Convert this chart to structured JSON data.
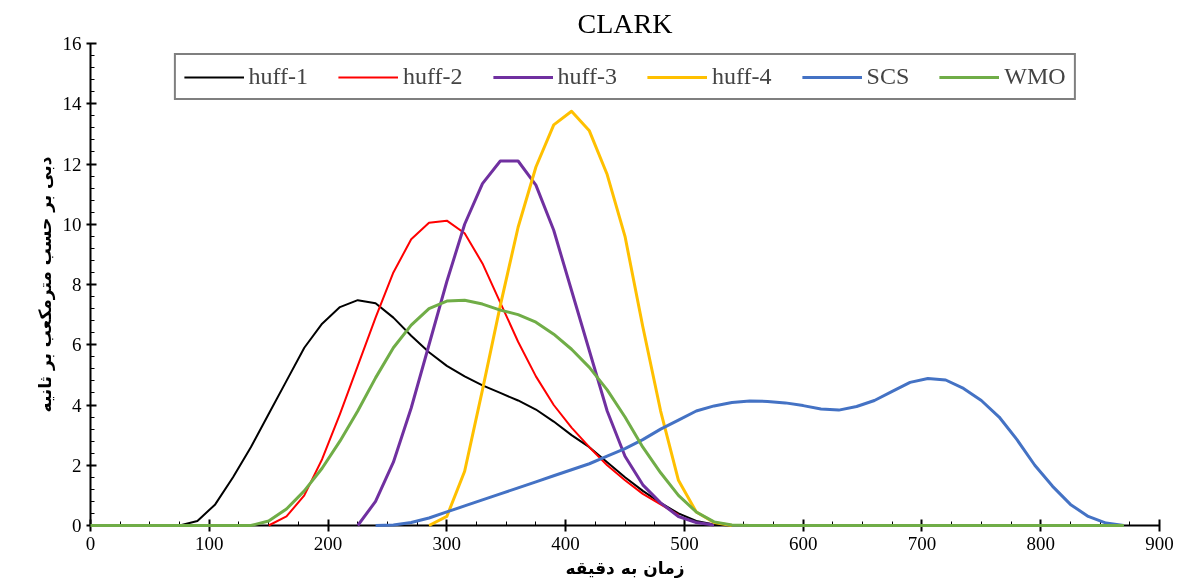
{
  "chart_data": {
    "type": "line",
    "title": "CLARK",
    "xlabel": "زمان به دقیقه",
    "ylabel": "دبی بر حسب مترمکعب بر ثانیه",
    "x": [
      0,
      15,
      30,
      45,
      60,
      75,
      90,
      105,
      120,
      135,
      150,
      165,
      180,
      195,
      210,
      225,
      240,
      255,
      270,
      285,
      300,
      315,
      330,
      345,
      360,
      375,
      390,
      405,
      420,
      435,
      450,
      465,
      480,
      495,
      510,
      525,
      540,
      555,
      570,
      585,
      600,
      615,
      630,
      645,
      660,
      675,
      690,
      705,
      720,
      735,
      750,
      765,
      780,
      795,
      810,
      825,
      840,
      855,
      870
    ],
    "series": [
      {
        "name": "huff-1",
        "color": "#000000",
        "values": [
          null,
          null,
          null,
          null,
          null,
          0,
          0.15,
          0.7,
          1.6,
          2.6,
          3.7,
          4.8,
          5.9,
          6.7,
          7.25,
          7.48,
          7.38,
          6.9,
          6.3,
          5.75,
          5.3,
          4.95,
          4.65,
          4.4,
          4.15,
          3.85,
          3.45,
          3.0,
          2.6,
          2.1,
          1.6,
          1.15,
          0.75,
          0.4,
          0.15,
          0.03,
          0,
          null,
          null,
          null,
          null,
          null,
          null,
          null,
          null,
          null,
          null,
          null,
          null,
          null,
          null,
          null,
          null,
          null,
          null,
          null,
          null,
          null,
          null
        ]
      },
      {
        "name": "huff-2",
        "color": "#ff0000",
        "values": [
          null,
          null,
          null,
          null,
          null,
          null,
          null,
          null,
          null,
          null,
          0,
          0.3,
          1.0,
          2.2,
          3.7,
          5.3,
          6.9,
          8.4,
          9.5,
          10.05,
          10.12,
          9.7,
          8.7,
          7.4,
          6.1,
          4.95,
          4.0,
          3.25,
          2.6,
          2.0,
          1.5,
          1.05,
          0.7,
          0.35,
          null,
          null,
          null,
          null,
          null,
          null,
          null,
          null,
          null,
          null,
          null,
          null,
          null,
          null,
          null,
          null,
          null,
          null,
          null,
          null,
          null,
          null,
          null,
          null,
          null
        ]
      },
      {
        "name": "huff-3",
        "color": "#7030a0",
        "values": [
          null,
          null,
          null,
          null,
          null,
          null,
          null,
          null,
          null,
          null,
          null,
          null,
          null,
          null,
          null,
          0,
          0.8,
          2.1,
          3.9,
          6.0,
          8.1,
          10.0,
          11.35,
          12.1,
          12.1,
          11.3,
          9.8,
          7.8,
          5.8,
          3.8,
          2.3,
          1.35,
          0.75,
          0.3,
          0.1,
          0.02,
          null,
          null,
          null,
          null,
          null,
          null,
          null,
          null,
          null,
          null,
          null,
          null,
          null,
          null,
          null,
          null,
          null,
          null,
          null,
          null,
          null,
          null,
          null
        ]
      },
      {
        "name": "huff-4",
        "color": "#ffc000",
        "values": [
          null,
          null,
          null,
          null,
          null,
          null,
          null,
          null,
          null,
          null,
          null,
          null,
          null,
          null,
          null,
          null,
          null,
          null,
          null,
          0,
          0.3,
          1.8,
          4.5,
          7.3,
          9.9,
          11.9,
          13.3,
          13.75,
          13.1,
          11.65,
          9.6,
          6.6,
          3.8,
          1.5,
          0.45,
          0.1,
          0,
          null,
          null,
          null,
          null,
          null,
          null,
          null,
          null,
          null,
          null,
          null,
          null,
          null,
          null,
          null,
          null,
          null,
          null,
          null,
          null,
          null,
          null
        ]
      },
      {
        "name": "SCS",
        "color": "#4472c4",
        "values": [
          null,
          null,
          null,
          null,
          null,
          null,
          null,
          null,
          null,
          null,
          null,
          null,
          null,
          null,
          null,
          null,
          0,
          0.02,
          0.1,
          0.25,
          0.45,
          0.65,
          0.85,
          1.05,
          1.25,
          1.45,
          1.65,
          1.85,
          2.05,
          2.3,
          2.55,
          2.85,
          3.2,
          3.5,
          3.8,
          3.97,
          4.08,
          4.13,
          4.12,
          4.07,
          3.98,
          3.87,
          3.83,
          3.95,
          4.15,
          4.45,
          4.75,
          4.88,
          4.83,
          4.55,
          4.15,
          3.6,
          2.85,
          2.0,
          1.3,
          0.7,
          0.3,
          0.08,
          0
        ]
      },
      {
        "name": "WMO",
        "color": "#70ad47",
        "values": [
          0,
          0,
          0,
          0,
          0,
          0,
          0,
          0,
          0,
          0,
          0.15,
          0.55,
          1.15,
          1.9,
          2.8,
          3.8,
          4.9,
          5.9,
          6.65,
          7.2,
          7.45,
          7.48,
          7.35,
          7.15,
          7.0,
          6.75,
          6.35,
          5.85,
          5.25,
          4.5,
          3.6,
          2.6,
          1.75,
          1.0,
          0.45,
          0.12,
          0.02,
          0,
          0,
          0,
          0,
          0,
          0,
          0,
          0,
          0,
          0,
          0,
          0,
          0,
          0,
          0,
          0,
          0,
          0,
          0,
          0,
          0,
          0
        ]
      }
    ],
    "xlim": [
      0,
      900
    ],
    "xticks": [
      0,
      100,
      200,
      300,
      400,
      500,
      600,
      700,
      800,
      900
    ],
    "ylim": [
      0,
      16
    ],
    "yticks": [
      0,
      2,
      4,
      6,
      8,
      10,
      12,
      14,
      16
    ],
    "grid": false,
    "legend": "top",
    "marker": "none",
    "line_style": "solid"
  }
}
